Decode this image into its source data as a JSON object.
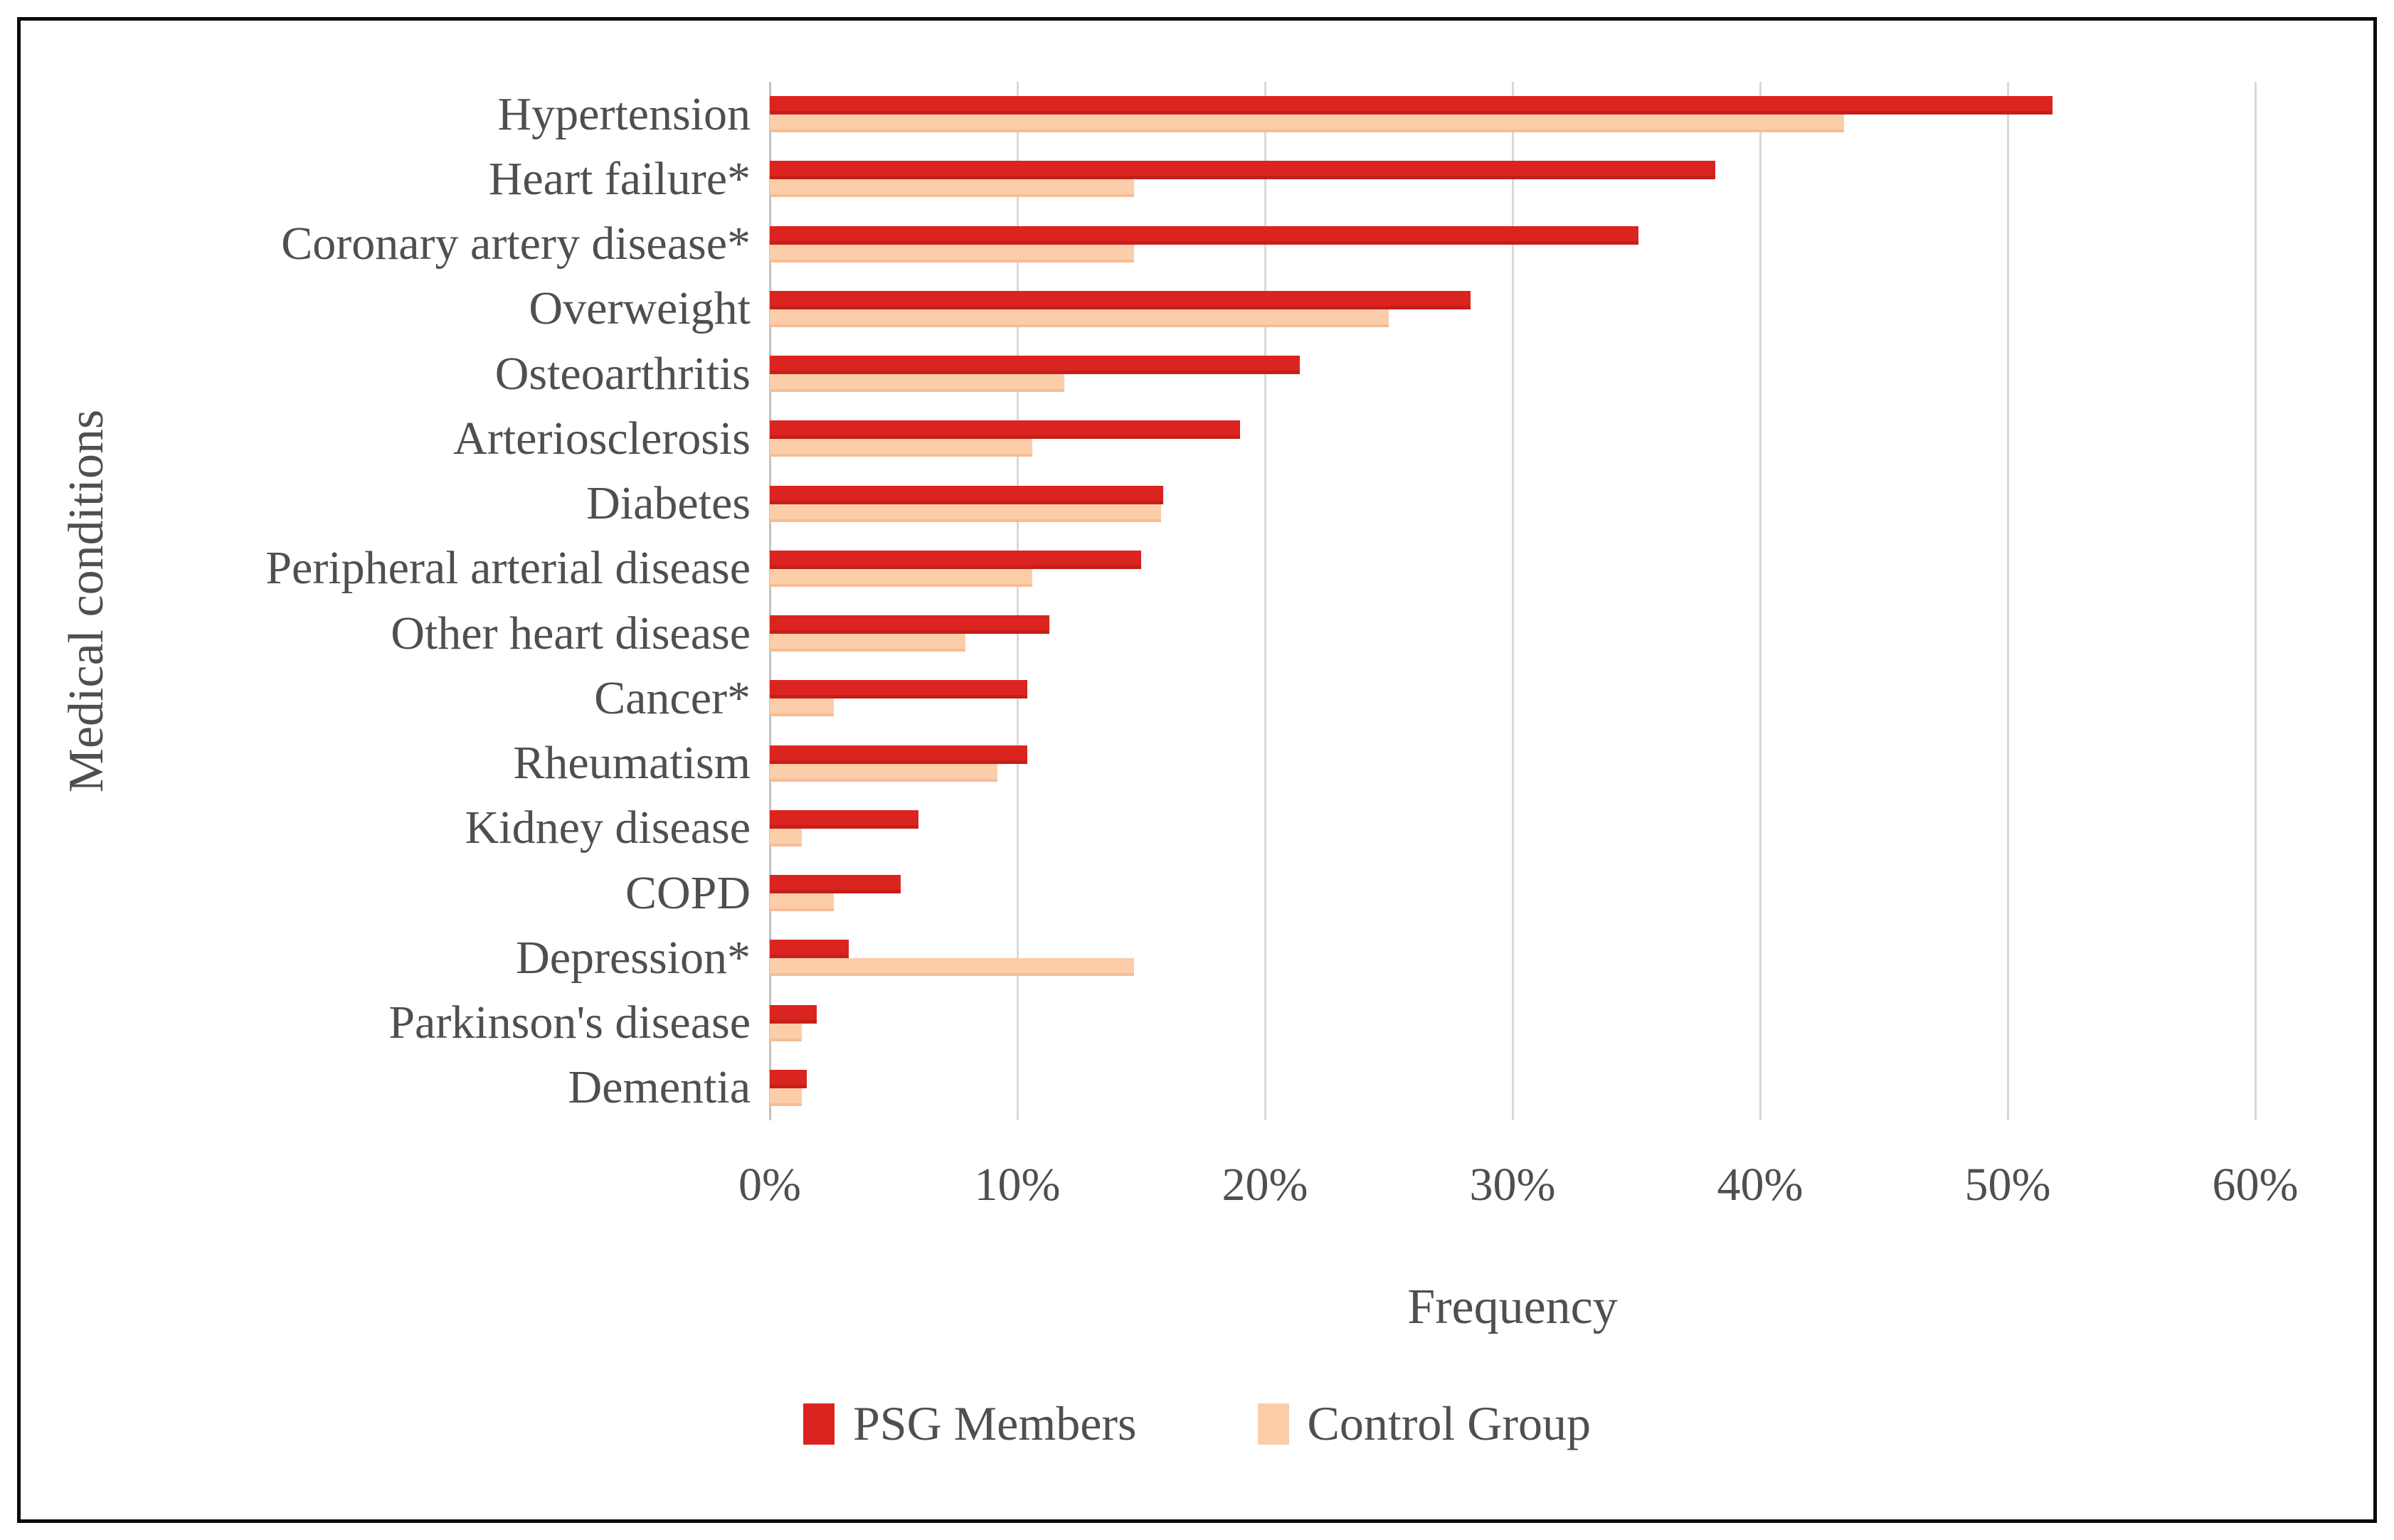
{
  "chart_data": {
    "type": "bar",
    "orientation": "horizontal",
    "title": "",
    "xlabel": "Frequency",
    "ylabel": "Medical conditions",
    "xlim": [
      0,
      60
    ],
    "x_ticks": [
      "0%",
      "10%",
      "20%",
      "30%",
      "40%",
      "50%",
      "60%"
    ],
    "grid": "vertical-gridlines-on",
    "legend_position": "bottom-center",
    "categories": [
      "Hypertension",
      "Heart failure*",
      "Coronary artery disease*",
      "Overweight",
      "Osteoarthritis",
      "Arteriosclerosis",
      "Diabetes",
      "Peripheral arterial disease",
      "Other heart disease",
      "Cancer*",
      "Rheumatism",
      "Kidney disease",
      "COPD",
      "Depression*",
      "Parkinson's disease",
      "Dementia"
    ],
    "series": [
      {
        "name": "PSG Members",
        "color": "#db241f",
        "values": [
          51.8,
          38.2,
          35.1,
          28.3,
          21.4,
          19.0,
          15.9,
          15.0,
          11.3,
          10.4,
          10.4,
          6.0,
          5.3,
          3.2,
          1.9,
          1.5
        ]
      },
      {
        "name": "Control Group",
        "color": "#fccda9",
        "values": [
          43.4,
          14.7,
          14.7,
          25.0,
          11.9,
          10.6,
          15.8,
          10.6,
          7.9,
          2.6,
          9.2,
          1.3,
          2.6,
          14.7,
          1.3,
          1.3
        ]
      }
    ]
  }
}
